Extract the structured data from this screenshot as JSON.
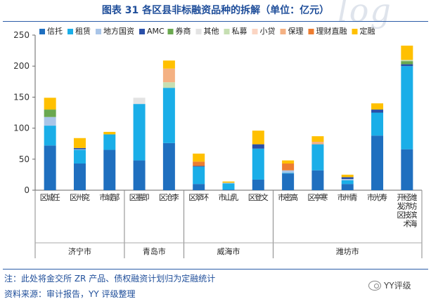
{
  "chart_data": {
    "type": "bar",
    "stacked": true,
    "title": "图表 31 各区县非标融资品种的拆解（单位：亿元）",
    "ylim": [
      0,
      250
    ],
    "yticks": [
      0,
      50,
      100,
      150,
      200,
      250
    ],
    "categories": [
      "任城区",
      "兖州区",
      "邹城市",
      "即墨区",
      "李沧区",
      "环翠区",
      "乳山市",
      "文登区",
      "高密市",
      "寒亭区",
      "青州市",
      "寿光市",
      "潍坊滨海经济技术开发区"
    ],
    "category_lines": [
      [
        "任",
        "城",
        "区"
      ],
      [
        "兖",
        "州",
        "区"
      ],
      [
        "邹",
        "城",
        "市"
      ],
      [
        "即",
        "墨",
        "区"
      ],
      [
        "李",
        "沧",
        "区"
      ],
      [
        "环",
        "翠",
        "区"
      ],
      [
        "乳",
        "山",
        "市"
      ],
      [
        "文",
        "登",
        "区"
      ],
      [
        "高",
        "密",
        "市"
      ],
      [
        "寒",
        "亭",
        "区"
      ],
      [
        "青",
        "州",
        "市"
      ],
      [
        "寿",
        "光",
        "市"
      ],
      [
        "潍坊滨海",
        "经济技术",
        "开发区"
      ]
    ],
    "groups": [
      {
        "name": "济宁市",
        "start": 0,
        "end": 2
      },
      {
        "name": "青岛市",
        "start": 3,
        "end": 4
      },
      {
        "name": "威海市",
        "start": 5,
        "end": 7
      },
      {
        "name": "潍坊市",
        "start": 8,
        "end": 12
      }
    ],
    "series": [
      {
        "name": "信托",
        "color": "#1f6fbf",
        "values": [
          72,
          43,
          65,
          48,
          76,
          10,
          1,
          17,
          27,
          32,
          10,
          88,
          66
        ]
      },
      {
        "name": "租赁",
        "color": "#1aaee8",
        "values": [
          32,
          22,
          25,
          91,
          89,
          28,
          10,
          50,
          1,
          42,
          6,
          37,
          134
        ]
      },
      {
        "name": "地方国资",
        "color": "#a9c5e8",
        "values": [
          14,
          1,
          0,
          0,
          0,
          0,
          1,
          0,
          4,
          0,
          2,
          0,
          0
        ]
      },
      {
        "name": "AMC",
        "color": "#2a4fa8",
        "values": [
          0,
          2,
          0,
          0,
          0,
          1,
          0,
          7,
          0,
          0,
          3,
          5,
          3
        ]
      },
      {
        "name": "券商",
        "color": "#6aa84f",
        "values": [
          12,
          0,
          0,
          0,
          0,
          0,
          0,
          0,
          0,
          0,
          0,
          0,
          5
        ]
      },
      {
        "name": "其他",
        "color": "#e3e3e3",
        "values": [
          0,
          0,
          0,
          10,
          0,
          0,
          0,
          0,
          0,
          0,
          0,
          0,
          0
        ]
      },
      {
        "name": "私募",
        "color": "#c6dfb2",
        "values": [
          0,
          0,
          0,
          0,
          9,
          0,
          0,
          0,
          0,
          0,
          0,
          0,
          2
        ]
      },
      {
        "name": "小贷",
        "color": "#fbd5c3",
        "values": [
          0,
          0,
          0,
          0,
          0,
          0,
          0,
          0,
          0,
          0,
          0,
          0,
          0
        ]
      },
      {
        "name": "保理",
        "color": "#f4b183",
        "values": [
          0,
          0,
          0,
          0,
          22,
          0,
          0,
          0,
          0,
          4,
          0,
          0,
          0
        ]
      },
      {
        "name": "理财直融",
        "color": "#ed7d31",
        "values": [
          0,
          0,
          0,
          0,
          0,
          7,
          0,
          0,
          11,
          0,
          0,
          0,
          0
        ]
      },
      {
        "name": "定融",
        "color": "#ffc000",
        "values": [
          19,
          16,
          4,
          0,
          13,
          13,
          2,
          22,
          5,
          9,
          4,
          10,
          23
        ]
      }
    ]
  },
  "footer": {
    "note": "注：此处将金交所 ZR 产品、债权融资计划归为定融统计",
    "source": "资料来源：审计报告，YY 评级整理",
    "brand": "YY评级"
  },
  "watermark": "log"
}
